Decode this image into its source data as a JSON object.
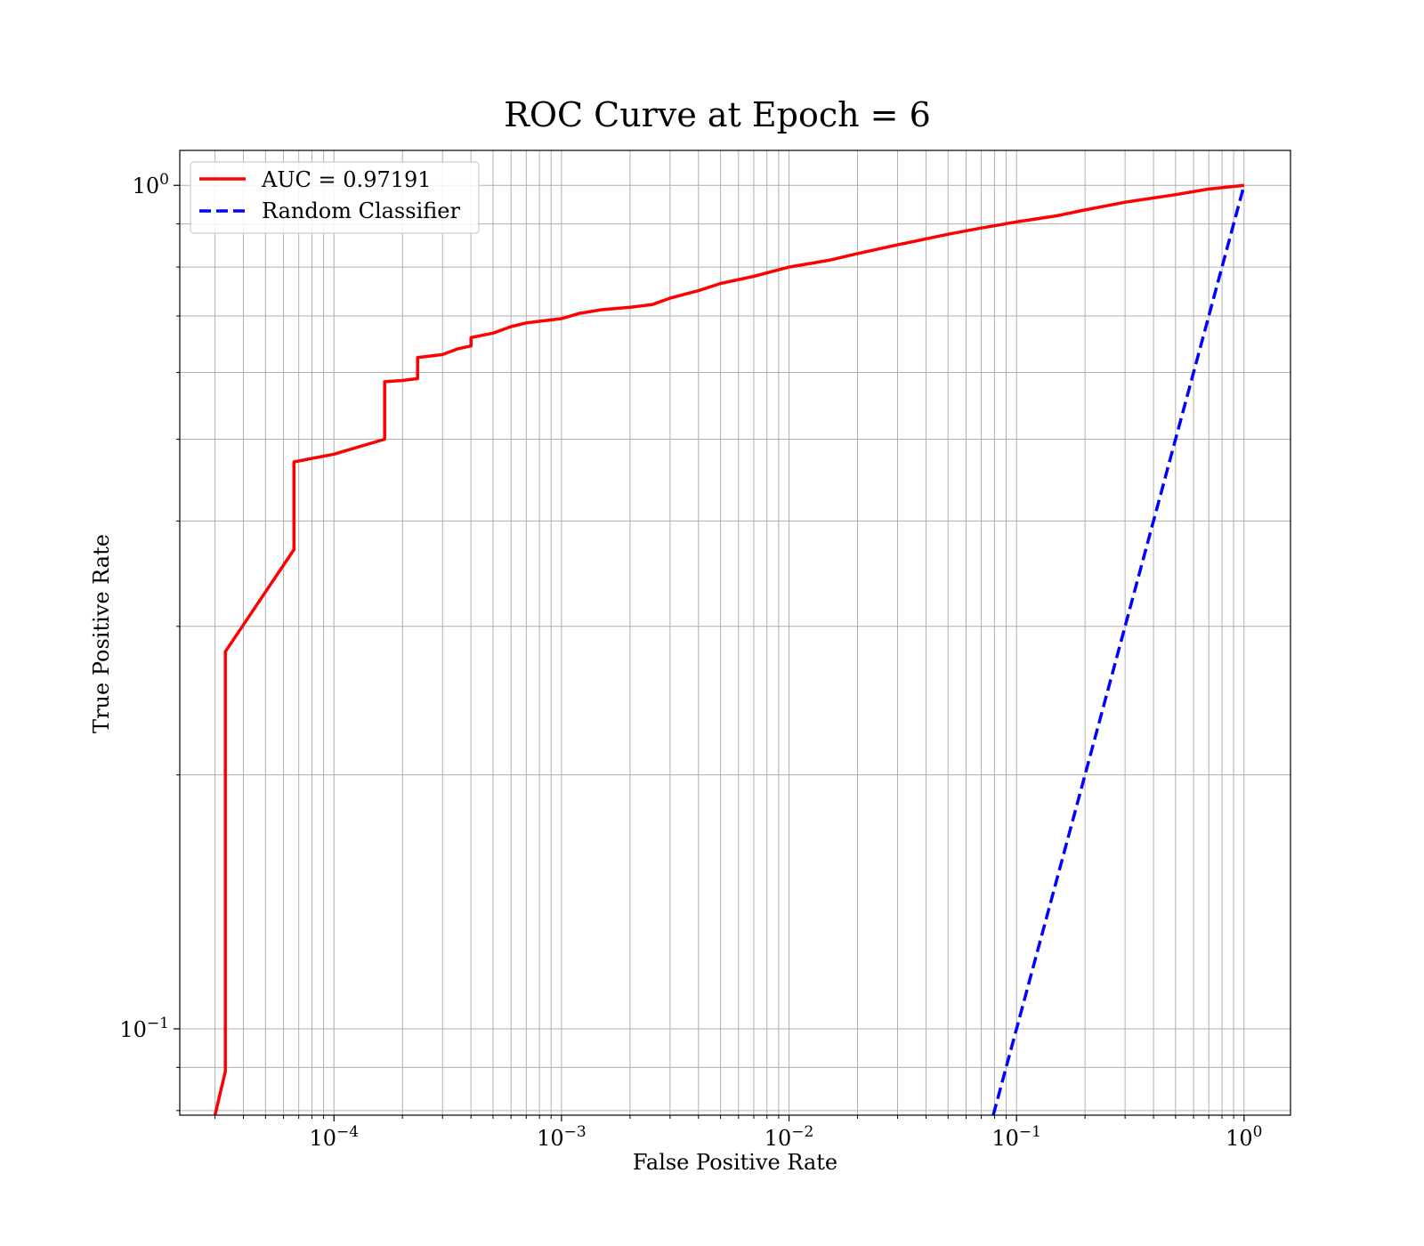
{
  "chart_data": {
    "type": "line",
    "title": "ROC Curve at Epoch = 6",
    "xlabel": "False Positive Rate",
    "ylabel": "True Positive Rate",
    "xscale": "log",
    "yscale": "log",
    "xlim": [
      2.1e-05,
      1.6
    ],
    "ylim": [
      0.079,
      1.1
    ],
    "grid": "both major and minor",
    "legend_position": "top-left",
    "x_ticks": [
      {
        "value": 0.0001,
        "base": "10",
        "exp": "−4"
      },
      {
        "value": 0.001,
        "base": "10",
        "exp": "−3"
      },
      {
        "value": 0.01,
        "base": "10",
        "exp": "−2"
      },
      {
        "value": 0.1,
        "base": "10",
        "exp": "−1"
      },
      {
        "value": 1,
        "base": "10",
        "exp": "0"
      }
    ],
    "y_ticks": [
      {
        "value": 0.1,
        "base": "10",
        "exp": "−1"
      },
      {
        "value": 1,
        "base": "10",
        "exp": "0"
      }
    ],
    "series": [
      {
        "name": "AUC = 0.97191",
        "color": "#ff0000",
        "dash": "solid",
        "x": [
          3e-05,
          3.1e-05,
          3.33e-05,
          3.33e-05,
          3.33e-05,
          6.67e-05,
          6.67e-05,
          6.67e-05,
          0.0001,
          0.000167,
          0.000167,
          0.0002,
          0.000233,
          0.000233,
          0.0003,
          0.00035,
          0.0004,
          0.0004,
          0.0005,
          0.0006,
          0.0007,
          0.0008,
          0.001,
          0.0012,
          0.0015,
          0.002,
          0.0025,
          0.003,
          0.004,
          0.005,
          0.007,
          0.01,
          0.015,
          0.02,
          0.03,
          0.05,
          0.07,
          0.1,
          0.15,
          0.2,
          0.3,
          0.5,
          0.7,
          1.0
        ],
        "y": [
          0.079,
          0.082,
          0.089,
          0.28,
          0.28,
          0.37,
          0.47,
          0.47,
          0.48,
          0.5,
          0.585,
          0.587,
          0.59,
          0.625,
          0.63,
          0.64,
          0.645,
          0.66,
          0.668,
          0.68,
          0.687,
          0.69,
          0.695,
          0.705,
          0.712,
          0.717,
          0.722,
          0.735,
          0.75,
          0.765,
          0.78,
          0.8,
          0.815,
          0.83,
          0.85,
          0.875,
          0.89,
          0.905,
          0.92,
          0.935,
          0.955,
          0.975,
          0.99,
          1.0
        ]
      },
      {
        "name": "Random Classifier",
        "color": "#0000ff",
        "dash": "dashed",
        "x": [
          0.079,
          1.0
        ],
        "y": [
          0.079,
          1.0
        ]
      }
    ]
  }
}
